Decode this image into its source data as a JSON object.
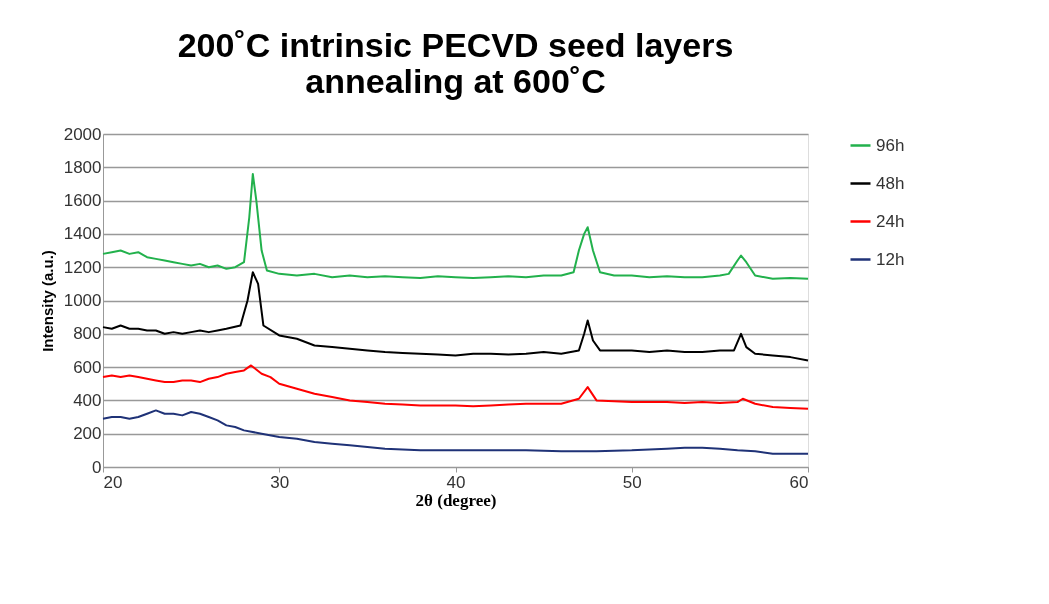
{
  "chart_data": {
    "type": "line",
    "title": [
      "200˚C intrinsic PECVD seed layers",
      "annealing at 600˚C"
    ],
    "xlabel": "2θ (degree)",
    "ylabel": "Intensity (a.u.)",
    "xlim": [
      20,
      60
    ],
    "xticks": [
      20,
      30,
      40,
      50,
      60
    ],
    "ylim": [
      0,
      2000
    ],
    "yticks": [
      0,
      200,
      400,
      600,
      800,
      1000,
      1200,
      1400,
      1600,
      1800,
      2000
    ],
    "grid": "y",
    "legend": "right",
    "marker": "none",
    "line_style": "solid",
    "series": [
      {
        "name": "96h",
        "color": "#22b14c",
        "x": [
          20,
          20.5,
          21,
          21.5,
          22,
          22.5,
          23,
          23.5,
          24,
          24.5,
          25,
          25.5,
          26,
          26.5,
          27,
          27.5,
          28,
          28.3,
          28.5,
          28.7,
          29,
          29.3,
          30,
          31,
          32,
          33,
          34,
          35,
          36,
          37,
          38,
          39,
          40,
          41,
          42,
          43,
          44,
          45,
          46,
          46.7,
          47,
          47.3,
          47.5,
          47.8,
          48.2,
          49,
          50,
          51,
          52,
          53,
          54,
          55,
          55.5,
          56,
          56.2,
          56.5,
          57,
          58,
          59,
          60
        ],
        "values": [
          1280,
          1290,
          1300,
          1280,
          1290,
          1260,
          1250,
          1240,
          1230,
          1220,
          1210,
          1220,
          1200,
          1210,
          1190,
          1200,
          1230,
          1500,
          1760,
          1600,
          1300,
          1180,
          1160,
          1150,
          1160,
          1140,
          1150,
          1140,
          1145,
          1140,
          1135,
          1145,
          1140,
          1135,
          1140,
          1145,
          1140,
          1150,
          1150,
          1170,
          1300,
          1400,
          1440,
          1300,
          1170,
          1150,
          1150,
          1140,
          1145,
          1140,
          1140,
          1150,
          1160,
          1240,
          1270,
          1230,
          1150,
          1130,
          1135,
          1130
        ]
      },
      {
        "name": "48h",
        "color": "#000000",
        "x": [
          20,
          20.5,
          21,
          21.5,
          22,
          22.5,
          23,
          23.5,
          24,
          24.5,
          25,
          25.5,
          26,
          26.5,
          27,
          27.8,
          28.2,
          28.5,
          28.8,
          29.1,
          30,
          31,
          32,
          33,
          34,
          35,
          36,
          37,
          38,
          39,
          40,
          41,
          42,
          43,
          44,
          45,
          46,
          47,
          47.3,
          47.5,
          47.8,
          48.2,
          49,
          50,
          51,
          52,
          53,
          54,
          55,
          55.8,
          56.2,
          56.5,
          57,
          58,
          59,
          60
        ],
        "values": [
          840,
          830,
          850,
          830,
          830,
          820,
          820,
          800,
          810,
          800,
          810,
          820,
          810,
          820,
          830,
          850,
          1000,
          1170,
          1100,
          850,
          790,
          770,
          730,
          720,
          710,
          700,
          690,
          685,
          680,
          675,
          670,
          680,
          680,
          675,
          680,
          690,
          680,
          700,
          800,
          880,
          760,
          700,
          700,
          700,
          690,
          700,
          690,
          690,
          700,
          700,
          800,
          720,
          680,
          670,
          660,
          640
        ]
      },
      {
        "name": "24h",
        "color": "#ff0000",
        "x": [
          20,
          20.5,
          21,
          21.5,
          22,
          22.5,
          23,
          23.5,
          24,
          24.5,
          25,
          25.5,
          26,
          26.5,
          27,
          27.5,
          28,
          28.4,
          29,
          29.5,
          30,
          31,
          32,
          33,
          34,
          35,
          36,
          37,
          38,
          39,
          40,
          41,
          42,
          43,
          44,
          45,
          46,
          47,
          47.5,
          48,
          49,
          50,
          51,
          52,
          53,
          54,
          55,
          56,
          56.3,
          57,
          58,
          59,
          60
        ],
        "values": [
          540,
          550,
          540,
          550,
          540,
          530,
          520,
          510,
          510,
          520,
          520,
          510,
          530,
          540,
          560,
          570,
          580,
          610,
          560,
          540,
          500,
          470,
          440,
          420,
          400,
          390,
          380,
          375,
          370,
          370,
          370,
          365,
          370,
          375,
          380,
          380,
          380,
          410,
          480,
          400,
          395,
          390,
          390,
          390,
          385,
          390,
          385,
          390,
          410,
          380,
          360,
          355,
          350
        ]
      },
      {
        "name": "12h",
        "color": "#1f3277",
        "x": [
          20,
          20.5,
          21,
          21.5,
          22,
          22.5,
          23,
          23.5,
          24,
          24.5,
          25,
          25.5,
          26,
          26.5,
          27,
          27.5,
          28,
          29,
          30,
          31,
          32,
          33,
          34,
          35,
          36,
          37,
          38,
          39,
          40,
          42,
          44,
          46,
          48,
          50,
          52,
          53,
          54,
          55,
          56,
          57,
          58,
          59,
          60
        ],
        "values": [
          290,
          300,
          300,
          290,
          300,
          320,
          340,
          320,
          320,
          310,
          330,
          320,
          300,
          280,
          250,
          240,
          220,
          200,
          180,
          170,
          150,
          140,
          130,
          120,
          110,
          105,
          100,
          100,
          100,
          100,
          100,
          95,
          95,
          100,
          110,
          115,
          115,
          110,
          100,
          95,
          80,
          80,
          80
        ]
      }
    ]
  }
}
